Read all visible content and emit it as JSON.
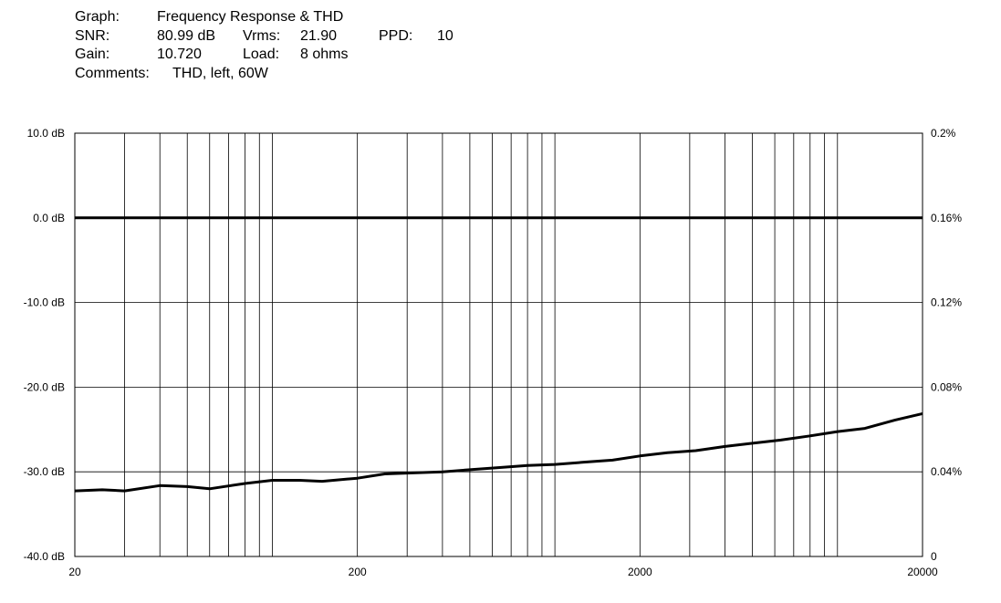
{
  "header": {
    "graph_label": "Graph:",
    "graph_value": "Frequency Response & THD",
    "snr_label": "SNR:",
    "snr_value": "80.99 dB",
    "vrms_label": "Vrms:",
    "vrms_value": "21.90",
    "ppd_label": "PPD:",
    "ppd_value": "10",
    "gain_label": "Gain:",
    "gain_value": "10.720",
    "load_label": "Load:",
    "load_value": "8 ohms",
    "comments_label": "Comments:",
    "comments_value": "THD, left, 60W"
  },
  "chart_data": {
    "type": "line",
    "title": "Frequency Response & THD",
    "x_scale": "log",
    "xlim": [
      20,
      20000
    ],
    "x_ticks": [
      20,
      200,
      2000,
      20000
    ],
    "x_tick_labels": [
      "20",
      "200",
      "2000",
      "20000"
    ],
    "ylim_left": [
      -40,
      10
    ],
    "y_left_ticks": [
      10,
      0,
      -10,
      -20,
      -30,
      -40
    ],
    "y_left_tick_labels": [
      "10.0 dB",
      "0.0 dB",
      "-10.0 dB",
      "-20.0 dB",
      "-30.0 dB",
      "-40.0 dB"
    ],
    "ylim_right": [
      0,
      0.2
    ],
    "y_right_ticks": [
      0.2,
      0.16,
      0.12,
      0.08,
      0.04,
      0
    ],
    "y_right_tick_labels": [
      "0.2%",
      "0.16%",
      "0.12%",
      "0.08%",
      "0.04%",
      "0"
    ],
    "grid": true,
    "series": [
      {
        "axis": "left",
        "x": [
          20,
          20000
        ],
        "y": [
          0,
          0
        ]
      },
      {
        "axis": "right",
        "x": [
          20,
          25,
          30,
          40,
          50,
          60,
          80,
          100,
          125,
          150,
          200,
          250,
          315,
          400,
          500,
          630,
          800,
          1000,
          1250,
          1600,
          2000,
          2500,
          3150,
          4000,
          5000,
          6300,
          8000,
          10000,
          12500,
          16000,
          20000
        ],
        "y": [
          0.031,
          0.0315,
          0.031,
          0.0335,
          0.033,
          0.032,
          0.0345,
          0.036,
          0.036,
          0.0355,
          0.037,
          0.039,
          0.0395,
          0.04,
          0.041,
          0.042,
          0.043,
          0.0435,
          0.0445,
          0.0455,
          0.0475,
          0.049,
          0.05,
          0.052,
          0.0535,
          0.055,
          0.057,
          0.059,
          0.0605,
          0.0645,
          0.0675
        ]
      }
    ]
  }
}
